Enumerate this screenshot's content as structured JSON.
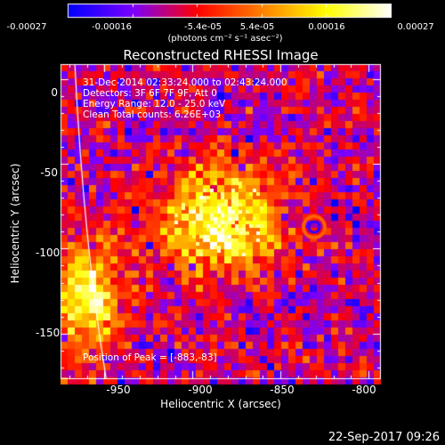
{
  "colorbar": {
    "tick_labels": [
      "-0.00027",
      "-0.00016",
      "-5.4e-05",
      "5.4e-05",
      "0.00016",
      "0.00027"
    ],
    "units": "(photons cm⁻² s⁻¹ asec⁻²)",
    "range": [
      -0.00027,
      0.00027
    ],
    "colors": [
      "#0000ff",
      "#7a00ff",
      "#ff0000",
      "#ff8000",
      "#ffff00",
      "#ffffff"
    ]
  },
  "plot": {
    "title": "Reconstructed RHESSI Image",
    "info_lines": [
      "31-Dec-2014 02:33:24.000 to 02:43:24.000",
      "Detectors: 3F 6F 7F 9F, Att 0",
      "Energy Range: 12.0 - 25.0 keV",
      "Clean     Total counts: 6.26E+03"
    ],
    "xlabel": "Heliocentric X (arcsec)",
    "ylabel": "Heliocentric Y (arcsec)",
    "x_ticks": [
      "-950",
      "-900",
      "-850",
      "-800"
    ],
    "y_ticks": [
      "0",
      "-50",
      "-100",
      "-150"
    ],
    "xlim": [
      -975,
      -793
    ],
    "ylim": [
      -177,
      9
    ],
    "peak_label": "Position of Peak = [-883,-83]",
    "peak": [
      -883,
      -83
    ],
    "limb_color": "#ffffff"
  },
  "footer": {
    "date_stamp": "22-Sep-2017 09:26"
  }
}
